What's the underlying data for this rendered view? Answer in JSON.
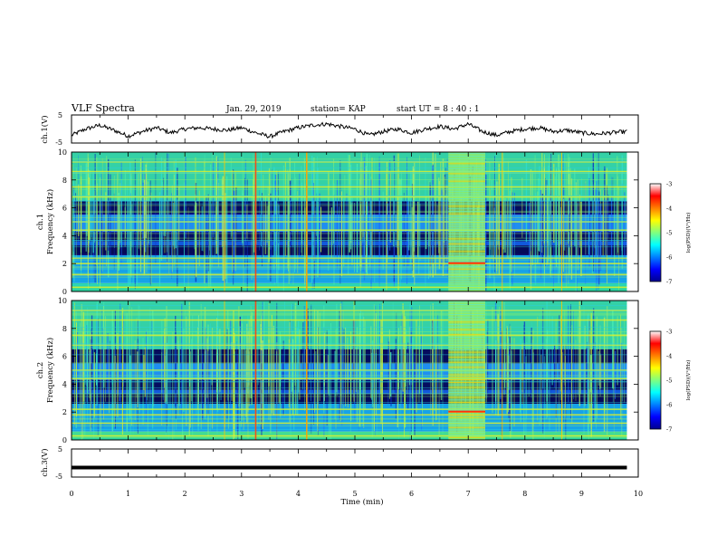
{
  "header": {
    "title": "VLF Spectra",
    "date": "Jan. 29, 2019",
    "station": "station= KAP",
    "start": "start  UT =   8  : 40 : 1"
  },
  "chart_data": [
    {
      "type": "line",
      "panel": "ch1-waveform",
      "ylabel": "ch.1(V)",
      "ylim": [
        -5,
        5
      ],
      "yticks": [
        "5",
        "-5"
      ],
      "xlim": [
        0,
        10
      ],
      "x": [
        0,
        0.25,
        0.5,
        0.75,
        1.0,
        1.25,
        1.5,
        1.75,
        2.0,
        2.25,
        2.5,
        2.75,
        3.0,
        3.25,
        3.5,
        3.75,
        4.0,
        4.25,
        4.5,
        4.75,
        5.0,
        5.25,
        5.5,
        5.75,
        6.0,
        6.25,
        6.5,
        6.75,
        7.0,
        7.25,
        7.5,
        7.75,
        8.0,
        8.25,
        8.5,
        8.75,
        9.0,
        9.25,
        9.5,
        9.8
      ],
      "y": [
        -2.5,
        0,
        1.5,
        -0.5,
        -2.8,
        -1,
        0.5,
        -1.5,
        0,
        0.5,
        0,
        -0.5,
        0.5,
        -1.5,
        -3,
        -1,
        0.5,
        1.5,
        2,
        1,
        0,
        -2.5,
        -1,
        0,
        -1.5,
        0,
        1,
        0,
        2,
        -1,
        -2.5,
        -1,
        0,
        0.5,
        -1,
        -0.5,
        -1.5,
        -2,
        -1.5,
        -1
      ]
    },
    {
      "type": "heatmap",
      "panel": "ch1-spectrogram",
      "ylabel": "ch.1",
      "ylabel2": "Frequency (kHz)",
      "ylim": [
        0,
        10
      ],
      "yticks": [
        "0",
        "2",
        "4",
        "6",
        "8",
        "10"
      ],
      "xlim": [
        0,
        10
      ],
      "colorbar": {
        "label": "log(PSD)(V²/Hz)",
        "range": [
          -7,
          -3
        ],
        "ticks": [
          "-3",
          "-4",
          "-5",
          "-6",
          "-7"
        ]
      },
      "dark_bands_khz": [
        [
          2.7,
          3.3
        ],
        [
          5.6,
          6.5
        ],
        [
          3.6,
          4.2
        ]
      ],
      "bright_lines_khz": [
        0.3,
        1.2,
        2.0,
        2.4,
        4.4,
        5.0,
        6.8,
        7.5,
        8.6,
        9.3
      ],
      "bright_column_min": [
        6.65,
        7.3
      ],
      "intense_vertical_lines_min": [
        3.25,
        4.15
      ]
    },
    {
      "type": "heatmap",
      "panel": "ch2-spectrogram",
      "ylabel": "ch.2",
      "ylabel2": "Frequency (kHz)",
      "ylim": [
        0,
        10
      ],
      "yticks": [
        "0",
        "2",
        "4",
        "6",
        "8",
        "10"
      ],
      "xlim": [
        0,
        10
      ],
      "colorbar": {
        "label": "log(PSD)(V²/Hz)",
        "range": [
          -7,
          -3
        ],
        "ticks": [
          "-3",
          "-4",
          "-5",
          "-6",
          "-7"
        ]
      },
      "dark_bands_khz": [
        [
          2.6,
          3.3
        ],
        [
          5.5,
          6.5
        ],
        [
          3.6,
          4.3
        ]
      ],
      "bright_lines_khz": [
        0.3,
        1.2,
        1.8,
        2.2,
        4.4,
        5.0,
        6.8,
        7.5,
        8.6,
        9.3
      ],
      "bright_column_min": [
        6.65,
        7.3
      ],
      "intense_vertical_lines_min": [
        3.25,
        4.15
      ]
    },
    {
      "type": "line",
      "panel": "ch3-waveform",
      "ylabel": "ch.3(V)",
      "ylim": [
        -5,
        5
      ],
      "yticks": [
        "5",
        "-5"
      ],
      "xlim": [
        0,
        10
      ],
      "x": [
        0,
        9.8
      ],
      "y": [
        -1.8,
        -1.8
      ],
      "xlabel": "Time (min)",
      "xticks": [
        "0",
        "1",
        "2",
        "3",
        "4",
        "5",
        "6",
        "7",
        "8",
        "9",
        "10"
      ]
    }
  ]
}
